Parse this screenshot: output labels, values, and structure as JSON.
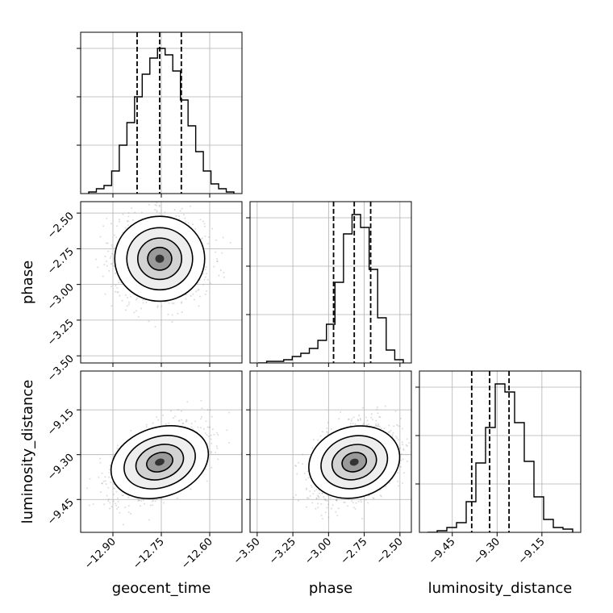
{
  "chart_data": {
    "type": "corner",
    "parameters": [
      "geocent_time",
      "phase",
      "luminosity_distance"
    ],
    "ranges": {
      "geocent_time": [
        -13.0,
        -12.5
      ],
      "phase": [
        -3.55,
        -2.42
      ],
      "luminosity_distance": [
        -9.56,
        -9.02
      ]
    },
    "ticks": {
      "geocent_time": [
        -12.9,
        -12.75,
        -12.6
      ],
      "phase": [
        -3.5,
        -3.25,
        -3.0,
        -2.75,
        -2.5
      ],
      "luminosity_distance": [
        -9.45,
        -9.3,
        -9.15
      ]
    },
    "tick_labels": {
      "geocent_time": [
        "−12.90",
        "−12.75",
        "−12.60"
      ],
      "phase": [
        "−3.50",
        "−3.25",
        "−3.00",
        "−2.75",
        "−2.50"
      ],
      "luminosity_distance": [
        "−9.45",
        "−9.30",
        "−9.15"
      ]
    },
    "quantiles": {
      "geocent_time": [
        -12.825,
        -12.755,
        -12.688
      ],
      "phase": [
        -2.965,
        -2.82,
        -2.705
      ],
      "luminosity_distance": [
        -9.385,
        -9.325,
        -9.26
      ]
    },
    "histograms": {
      "geocent_time": [
        1,
        3,
        5,
        14,
        30,
        44,
        60,
        74,
        84,
        90,
        86,
        76,
        58,
        42,
        26,
        14,
        6,
        3,
        1
      ],
      "phase": [
        0,
        1,
        1,
        2,
        4,
        6,
        9,
        14,
        24,
        50,
        80,
        92,
        84,
        58,
        28,
        8,
        2
      ],
      "luminosity_distance": [
        0,
        1,
        3,
        6,
        19,
        43,
        65,
        92,
        87,
        68,
        44,
        22,
        8,
        3,
        2
      ]
    },
    "hist_ymax": 100,
    "scatter": {
      "phase_vs_geocent_time": {
        "x_mean": -12.755,
        "y_mean": -2.82,
        "x_sd": 0.068,
        "y_sd": 0.145,
        "corr": 0.0
      },
      "luminosity_distance_vs_geocent_time": {
        "x_mean": -12.755,
        "y_mean": -9.325,
        "x_sd": 0.068,
        "y_sd": 0.062,
        "corr": 0.45
      },
      "luminosity_distance_vs_phase": {
        "x_mean": -2.82,
        "y_mean": -9.325,
        "x_sd": 0.145,
        "y_sd": 0.062,
        "corr": 0.35
      }
    },
    "contour_levels_sigma": [
      0.5,
      1.0,
      1.5,
      2.0
    ],
    "grid": true
  }
}
